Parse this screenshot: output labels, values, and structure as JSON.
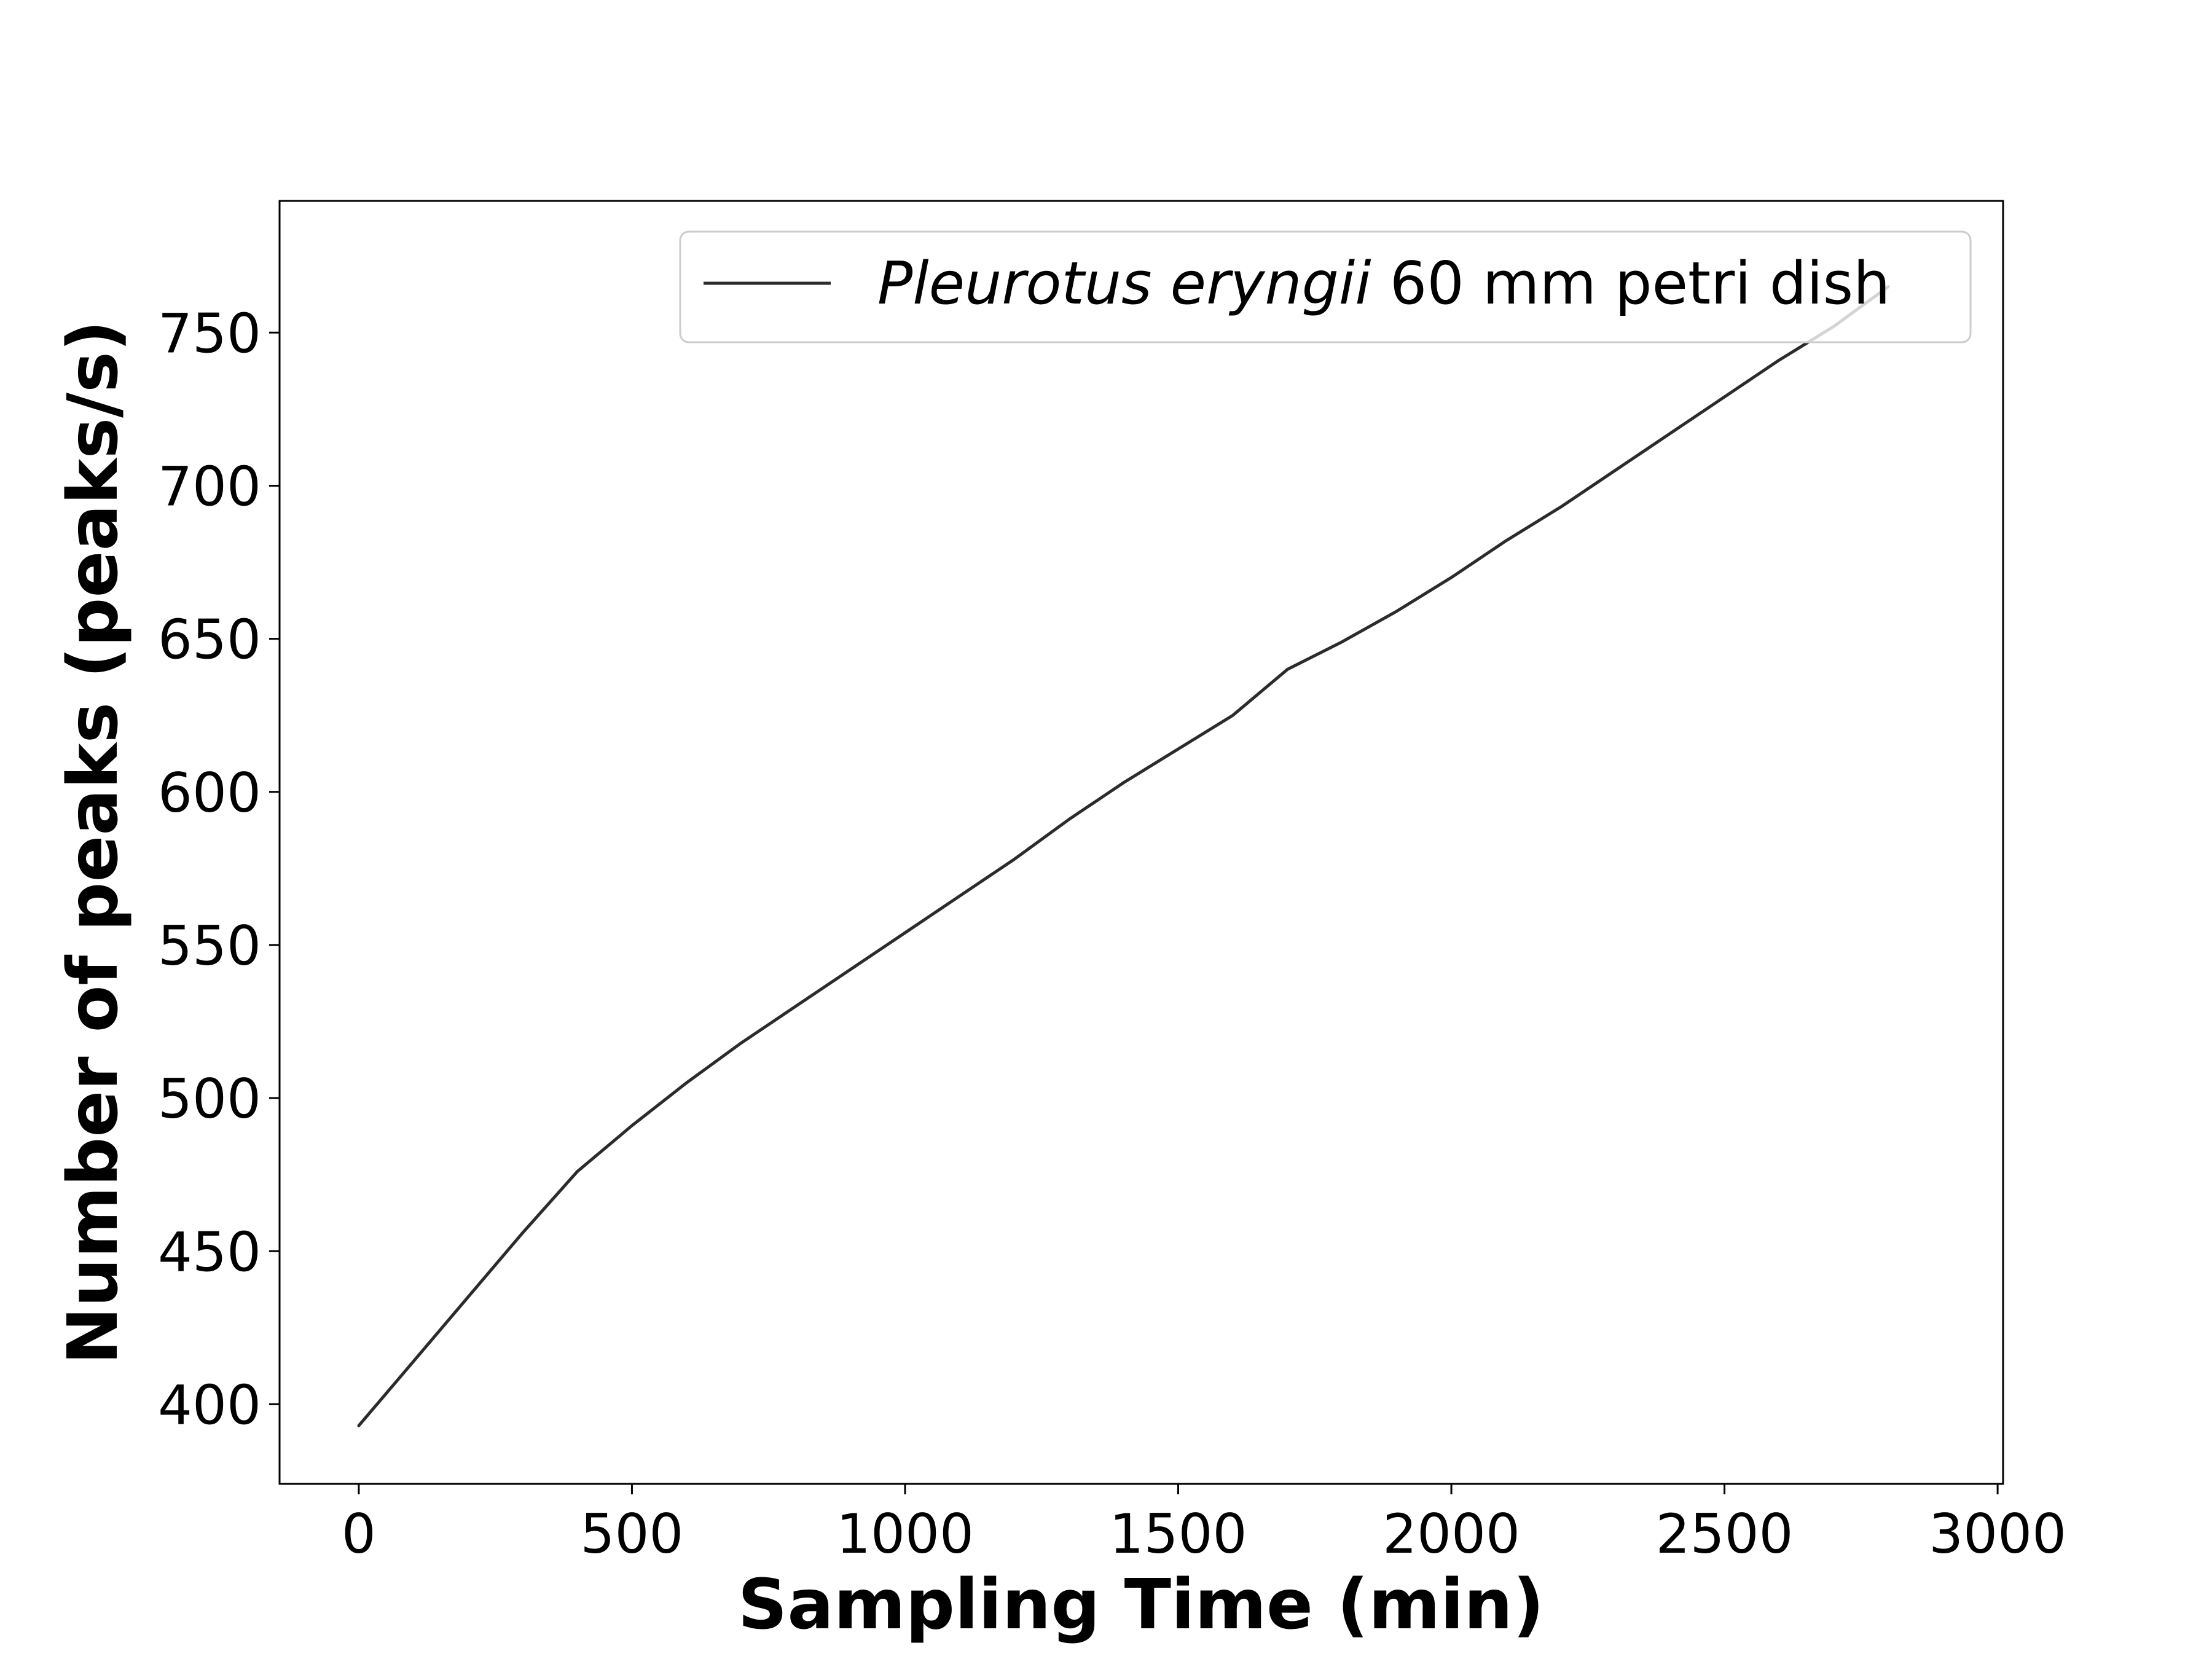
{
  "chart_data": {
    "type": "line",
    "title": "",
    "xlabel": "Sampling Time (min)",
    "ylabel": "Number of peaks (peaks/s)",
    "xlim": [
      -145,
      3010
    ],
    "ylim": [
      374,
      793
    ],
    "xticks": [
      0,
      500,
      1000,
      1500,
      2000,
      2500,
      3000
    ],
    "yticks": [
      400,
      450,
      500,
      550,
      600,
      650,
      700,
      750
    ],
    "xtick_labels": [
      "0",
      "500",
      "1000",
      "1500",
      "2000",
      "2500",
      "3000"
    ],
    "ytick_labels": [
      "400",
      "450",
      "500",
      "550",
      "600",
      "650",
      "700",
      "750"
    ],
    "grid": false,
    "legend": {
      "placement": "top-right",
      "italic_part": "Pleurotus eryngii",
      "plain_part": " 60 mm petri dish"
    },
    "series": [
      {
        "name": "Pleurotus eryngii 60 mm petri dish",
        "color": "#2b2b2b",
        "x": [
          0,
          100,
          200,
          300,
          400,
          500,
          600,
          700,
          800,
          900,
          1000,
          1100,
          1200,
          1300,
          1400,
          1500,
          1600,
          1700,
          1800,
          1900,
          2000,
          2100,
          2200,
          2300,
          2400,
          2500,
          2600,
          2700,
          2800
        ],
        "y": [
          393,
          414,
          435,
          456,
          476,
          491,
          505,
          518,
          530,
          542,
          554,
          566,
          578,
          591,
          603,
          614,
          625,
          640,
          649,
          659,
          670,
          682,
          693,
          705,
          717,
          729,
          741,
          752,
          765
        ]
      }
    ]
  }
}
